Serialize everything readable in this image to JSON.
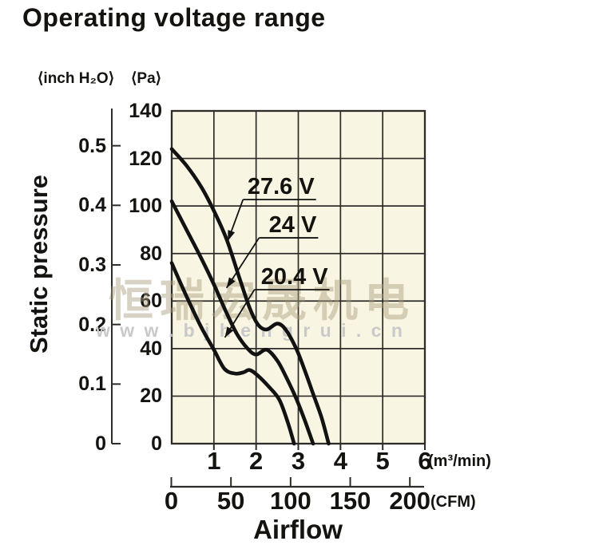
{
  "page": {
    "title": "Operating voltage range"
  },
  "chart": {
    "y_left_unit": "⟨inch H₂O⟩",
    "y_right_unit": "⟨Pa⟩",
    "y_axis_title": "Static pressure",
    "x_axis_title": "Airflow",
    "x_unit_suffix": "(m³/min)",
    "x2_unit_suffix": "(CFM)",
    "colors": {
      "plot_bg": "#f8f5e2",
      "grid": "#2e2c28",
      "curve": "#121212",
      "axis": "#3a3835",
      "text": "#14130f"
    }
  },
  "chart_data": {
    "type": "line",
    "title": "Operating voltage range",
    "xlabel": "Airflow",
    "ylabel": "Static pressure",
    "x_axis": {
      "unit": "m³/min",
      "range": [
        0,
        6
      ],
      "ticks": [
        1,
        2,
        3,
        4,
        5,
        6
      ]
    },
    "x2_axis": {
      "unit": "CFM",
      "range": [
        0,
        212
      ],
      "ticks": [
        0,
        50,
        100,
        150,
        200
      ]
    },
    "y_axis_pa": {
      "unit": "Pa",
      "range": [
        0,
        140
      ],
      "ticks": [
        0,
        20,
        40,
        60,
        80,
        100,
        120,
        140
      ]
    },
    "y_axis_inch": {
      "unit": "inch H₂O",
      "range": [
        0,
        0.56
      ],
      "ticks": [
        0,
        0.1,
        0.2,
        0.3,
        0.4,
        0.5
      ]
    },
    "grid": "on",
    "series": [
      {
        "name": "27.6 V",
        "points": [
          [
            0,
            124
          ],
          [
            0.35,
            117
          ],
          [
            0.7,
            108
          ],
          [
            1.0,
            98
          ],
          [
            1.3,
            86
          ],
          [
            1.6,
            70
          ],
          [
            1.85,
            57
          ],
          [
            2.05,
            50
          ],
          [
            2.25,
            48
          ],
          [
            2.5,
            50.5
          ],
          [
            2.7,
            48
          ],
          [
            2.95,
            40
          ],
          [
            3.15,
            31
          ],
          [
            3.35,
            21
          ],
          [
            3.55,
            11
          ],
          [
            3.72,
            0
          ]
        ],
        "callout": {
          "underline_x": [
            1.69,
            3.42
          ],
          "underline_pa": 102.7,
          "tip": [
            1.33,
            85.3
          ]
        }
      },
      {
        "name": "24 V",
        "points": [
          [
            0,
            102
          ],
          [
            0.35,
            90
          ],
          [
            0.7,
            78
          ],
          [
            1.0,
            67
          ],
          [
            1.3,
            55
          ],
          [
            1.55,
            46
          ],
          [
            1.8,
            40
          ],
          [
            2.0,
            37.5
          ],
          [
            2.25,
            39.5
          ],
          [
            2.5,
            35
          ],
          [
            2.7,
            28.5
          ],
          [
            2.95,
            19
          ],
          [
            3.15,
            10
          ],
          [
            3.35,
            0
          ]
        ],
        "callout": {
          "underline_x": [
            2.07,
            3.47
          ],
          "underline_pa": 86.6,
          "tip": [
            1.3,
            65.5
          ]
        }
      },
      {
        "name": "20.4 V",
        "points": [
          [
            0,
            76
          ],
          [
            0.35,
            62
          ],
          [
            0.7,
            49
          ],
          [
            1.0,
            39.5
          ],
          [
            1.25,
            31.5
          ],
          [
            1.5,
            29.5
          ],
          [
            1.7,
            30
          ],
          [
            1.85,
            31
          ],
          [
            2.05,
            28.5
          ],
          [
            2.3,
            24
          ],
          [
            2.55,
            18.5
          ],
          [
            2.75,
            9
          ],
          [
            2.9,
            0
          ]
        ],
        "callout": {
          "underline_x": [
            1.96,
            3.74
          ],
          "underline_pa": 64.8,
          "tip": [
            1.26,
            44.7
          ]
        }
      }
    ]
  },
  "watermark": {
    "cjk_text": "恒瑞宏晟机电",
    "url_text": "w w w . b j h e n g r u i . c n"
  }
}
